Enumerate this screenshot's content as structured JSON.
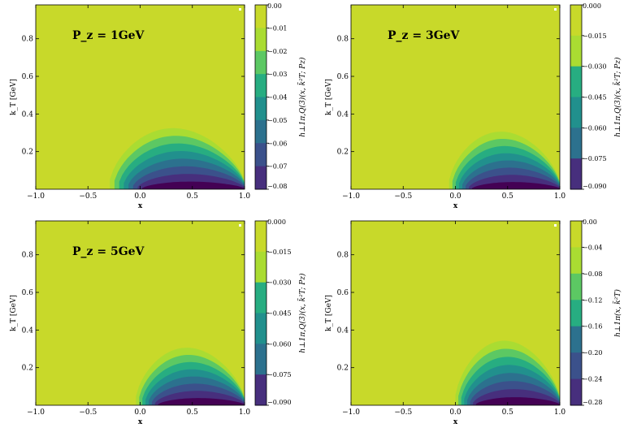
{
  "levels": [
    "#440154",
    "#472f7d",
    "#3b518b",
    "#2c718e",
    "#21908d",
    "#27ad81",
    "#5cc863",
    "#aadc32",
    "#c8d92a"
  ],
  "chart_data": [
    {
      "type": "contour",
      "annotation": "P_z = 1GeV",
      "xlabel": "x",
      "ylabel": "k_T [GeV]",
      "xlim": [
        -1.0,
        1.0
      ],
      "ylim": [
        0.0,
        0.98
      ],
      "xticks": [
        "−1.0",
        "−0.5",
        "0.0",
        "0.5",
        "1.0"
      ],
      "yticks": [
        "0.2",
        "0.4",
        "0.6",
        "0.8"
      ],
      "colorbar_label": "h⊥1π,Q(3)(x, k̃²T; Pz)",
      "colorbar_ticks": [
        "0.00",
        "−0.01",
        "−0.02",
        "−0.03",
        "−0.04",
        "−0.05",
        "−0.06",
        "−0.07",
        "−0.08"
      ],
      "color_range": [
        -0.08,
        0.0
      ],
      "shape": {
        "x_left": -0.29,
        "x_peak": 0.5,
        "x_right": 1.0,
        "k_max": 0.35
      }
    },
    {
      "type": "contour",
      "annotation": "P_z = 3GeV",
      "xlabel": "x",
      "ylabel": "k_T [GeV]",
      "xlim": [
        -1.0,
        1.0
      ],
      "ylim": [
        0.0,
        0.98
      ],
      "xticks": [
        "−1.0",
        "−0.5",
        "0.0",
        "0.5",
        "1.0"
      ],
      "yticks": [
        "0.2",
        "0.4",
        "0.6",
        "0.8"
      ],
      "colorbar_label": "h⊥1π,Q(3)(x, k̃²T; Pz)",
      "colorbar_ticks": [
        "0.000",
        "−0.015",
        "−0.030",
        "−0.045",
        "−0.060",
        "−0.075",
        "−0.090"
      ],
      "color_range": [
        -0.09,
        0.0
      ],
      "shape": {
        "x_left": -0.06,
        "x_peak": 0.5,
        "x_right": 1.0,
        "k_max": 0.33
      }
    },
    {
      "type": "contour",
      "annotation": "P_z = 5GeV",
      "xlabel": "x",
      "ylabel": "k_T [GeV]",
      "xlim": [
        -1.0,
        1.0
      ],
      "ylim": [
        0.0,
        0.98
      ],
      "xticks": [
        "−1.0",
        "−0.5",
        "0.0",
        "0.5",
        "1.0"
      ],
      "yticks": [
        "0.2",
        "0.4",
        "0.6",
        "0.8"
      ],
      "colorbar_label": "h⊥1π,Q(3)(x, k̃²T; Pz)",
      "colorbar_ticks": [
        "0.000",
        "−0.015",
        "−0.030",
        "−0.045",
        "−0.060",
        "−0.075",
        "−0.090"
      ],
      "color_range": [
        -0.09,
        0.0
      ],
      "shape": {
        "x_left": -0.04,
        "x_peak": 0.5,
        "x_right": 1.0,
        "k_max": 0.33
      }
    },
    {
      "type": "contour",
      "annotation": "",
      "xlabel": "x",
      "ylabel": "k_T [GeV]",
      "xlim": [
        -1.0,
        1.0
      ],
      "ylim": [
        0.0,
        0.98
      ],
      "xticks": [
        "−1.0",
        "−0.5",
        "0.0",
        "0.5",
        "1.0"
      ],
      "yticks": [
        "0.2",
        "0.4",
        "0.6",
        "0.8"
      ],
      "colorbar_label": "h⊥1π(x, k̃²T)",
      "colorbar_ticks": [
        "0.00",
        "−0.04",
        "−0.08",
        "−0.12",
        "−0.16",
        "−0.20",
        "−0.24",
        "−0.28"
      ],
      "color_range": [
        -0.28,
        0.0
      ],
      "shape": {
        "x_left": 0.0,
        "x_peak": 0.5,
        "x_right": 1.0,
        "k_max": 0.37
      }
    }
  ]
}
